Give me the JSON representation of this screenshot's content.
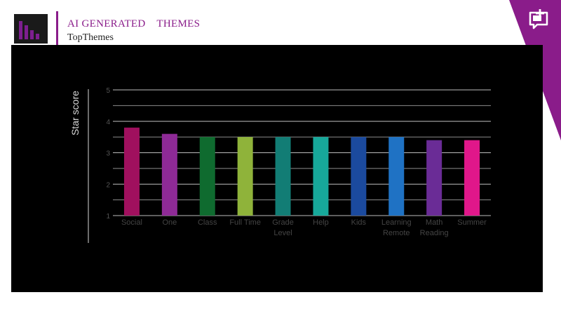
{
  "header": {
    "title": "AI GENERATED    THEMES",
    "subtitle": "TopThemes"
  },
  "icons": {
    "logo": "bar-chart-logo-icon",
    "comment": "add-comment-icon"
  },
  "colors": {
    "brand": "#8a1c8a",
    "panel": "#000000"
  },
  "chart_data": {
    "type": "bar",
    "ylabel": "Star score",
    "ylim": [
      1,
      5
    ],
    "yticks": [
      1,
      2,
      3,
      4,
      5
    ],
    "grid": true,
    "categories": [
      [
        "Social"
      ],
      [
        "One"
      ],
      [
        "Class"
      ],
      [
        "Full Time"
      ],
      [
        "Grade",
        "Level"
      ],
      [
        "Help"
      ],
      [
        "Kids"
      ],
      [
        "Learning",
        "Remote"
      ],
      [
        "Math",
        "Reading"
      ],
      [
        "Summer"
      ]
    ],
    "values": [
      3.8,
      3.6,
      3.5,
      3.5,
      3.5,
      3.5,
      3.5,
      3.5,
      3.4,
      3.4
    ],
    "colors": [
      "#a0105e",
      "#8e2a96",
      "#0f6b2f",
      "#8fb33a",
      "#127d75",
      "#17a89a",
      "#1b4a9e",
      "#1f72c4",
      "#6a2c96",
      "#e0178a"
    ]
  }
}
